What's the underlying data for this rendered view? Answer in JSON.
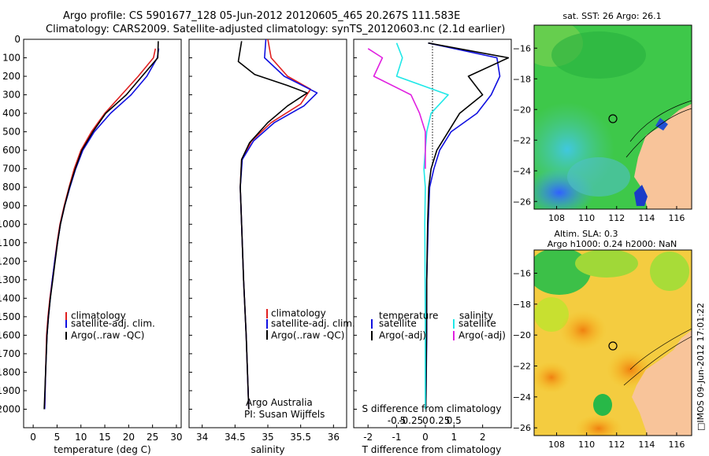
{
  "title_line1": "Argo profile: CS 5901677_128 05-Jun-2012 20120605_465 20.267S 111.583E",
  "title_line2": "Climatology: CARS2009. Satellite-adjusted climatology: synTS_20120603.nc (2.1d earlier)",
  "credit": "Argo Australia",
  "pi": "PI: Susan Wijffels",
  "imos_stamp": "□IMOS 09-Jun-2012 17:01:22",
  "colors": {
    "climatology": "#e02020",
    "satellite": "#1010e0",
    "argo": "#000000",
    "cyan": "#20e0e8",
    "magenta": "#e020e0"
  },
  "chart_data": [
    {
      "type": "line",
      "name": "temperature",
      "xlabel": "temperature (deg C)",
      "ylabel": "",
      "xlim": [
        -2,
        31
      ],
      "ylim": [
        2100,
        0
      ],
      "xticks": [
        0,
        5,
        10,
        15,
        20,
        25,
        30
      ],
      "yticks": [
        0,
        100,
        200,
        300,
        400,
        500,
        600,
        700,
        800,
        900,
        1000,
        1100,
        1200,
        1300,
        1400,
        1500,
        1600,
        1700,
        1800,
        1900,
        2000
      ],
      "legend": [
        "climatology",
        "satellite-adj. clim.",
        "Argo(..raw -QC)"
      ],
      "series": [
        {
          "name": "climatology",
          "color": "#e02020",
          "x": [
            25.6,
            25.2,
            22.0,
            18.5,
            15.0,
            12.2,
            10.0,
            8.6,
            7.5,
            6.5,
            5.6,
            5.0,
            4.5,
            4.0,
            3.5,
            3.1,
            2.8,
            2.6,
            2.4
          ],
          "y": [
            50,
            100,
            200,
            300,
            400,
            500,
            600,
            700,
            800,
            900,
            1000,
            1100,
            1200,
            1300,
            1400,
            1500,
            1600,
            1800,
            2000
          ]
        },
        {
          "name": "satellite-adj. clim.",
          "color": "#1010e0",
          "x": [
            26.3,
            26.0,
            23.8,
            20.5,
            16.2,
            12.8,
            10.4,
            8.9,
            7.7,
            6.6,
            5.7,
            5.1,
            4.5,
            4.0,
            3.6,
            3.2,
            2.9,
            2.6,
            2.4
          ],
          "y": [
            50,
            100,
            200,
            300,
            400,
            500,
            600,
            700,
            800,
            900,
            1000,
            1100,
            1200,
            1300,
            1400,
            1500,
            1600,
            1800,
            2000
          ]
        },
        {
          "name": "Argo(..raw -QC)",
          "color": "#000000",
          "x": [
            26.2,
            26.1,
            22.8,
            19.5,
            15.2,
            12.5,
            10.2,
            8.8,
            7.6,
            6.6,
            5.7,
            5.1,
            4.6,
            4.1,
            3.6,
            3.2,
            2.9,
            2.6,
            2.3
          ],
          "y": [
            10,
            100,
            200,
            300,
            400,
            500,
            600,
            700,
            800,
            900,
            1000,
            1100,
            1200,
            1300,
            1400,
            1500,
            1600,
            1800,
            2000
          ]
        }
      ]
    },
    {
      "type": "line",
      "name": "salinity",
      "xlabel": "salinity",
      "xlim": [
        33.8,
        36.2
      ],
      "ylim": [
        2100,
        0
      ],
      "xticks": [
        34,
        34.5,
        35,
        35.5,
        36
      ],
      "legend": [
        "climatology",
        "satellite-adj. clim.",
        "Argo(..raw -QC)"
      ],
      "series": [
        {
          "name": "climatology",
          "color": "#e02020",
          "x": [
            35.0,
            35.05,
            35.3,
            35.65,
            35.5,
            35.05,
            34.75,
            34.6,
            34.58,
            34.6,
            34.63,
            34.67,
            34.71
          ],
          "y": [
            0,
            100,
            200,
            270,
            350,
            450,
            550,
            650,
            800,
            1000,
            1300,
            1600,
            2000
          ]
        },
        {
          "name": "satellite-adj. clim.",
          "color": "#1010e0",
          "x": [
            34.97,
            34.95,
            35.25,
            35.75,
            35.55,
            35.1,
            34.78,
            34.61,
            34.58,
            34.6,
            34.63,
            34.67,
            34.71
          ],
          "y": [
            0,
            100,
            200,
            290,
            360,
            450,
            550,
            650,
            800,
            1000,
            1300,
            1600,
            2000
          ]
        },
        {
          "name": "Argo(..raw -QC)",
          "color": "#000000",
          "x": [
            34.6,
            34.55,
            34.8,
            35.3,
            35.6,
            35.3,
            35.0,
            34.72,
            34.6,
            34.58,
            34.6,
            34.63,
            34.67,
            34.71
          ],
          "y": [
            10,
            120,
            190,
            250,
            290,
            360,
            450,
            560,
            650,
            800,
            1000,
            1300,
            1600,
            2000
          ]
        }
      ]
    },
    {
      "type": "line",
      "name": "difference from climatology",
      "xlabel": "T difference from climatology",
      "xlabel_top": "S difference from climatology",
      "xlim": [
        -2.5,
        3.0
      ],
      "ylim": [
        2100,
        0
      ],
      "xticks_T": [
        -2,
        -1,
        0,
        1,
        2
      ],
      "xticks_S": [
        "-0.5",
        "-0.25",
        "0",
        "0.25",
        "0.5"
      ],
      "legend_left_title": "temperature",
      "legend_right_title": "salinity",
      "legend_left": [
        "satellite",
        "Argo(-adj)"
      ],
      "legend_right": [
        "satellite",
        "Argo(-adj)"
      ],
      "series": [
        {
          "name": "temperature satellite",
          "color": "#1010e0",
          "x": [
            0.1,
            2.5,
            2.6,
            2.3,
            1.8,
            0.9,
            0.5,
            0.3,
            0.15,
            0.1,
            0.05,
            0.05,
            0.02
          ],
          "y": [
            20,
            100,
            200,
            300,
            400,
            500,
            600,
            700,
            800,
            1000,
            1300,
            1600,
            2000
          ]
        },
        {
          "name": "temperature Argo(-adj)",
          "color": "#000000",
          "x": [
            0.1,
            2.9,
            1.5,
            2.0,
            1.2,
            0.8,
            0.4,
            0.2,
            0.12,
            0.08,
            0.05,
            0.04,
            0.02
          ],
          "y": [
            20,
            100,
            200,
            300,
            400,
            500,
            600,
            700,
            800,
            1000,
            1300,
            1600,
            2000
          ]
        },
        {
          "name": "salinity satellite",
          "color": "#20e8e8",
          "x": [
            -1.0,
            -0.8,
            -1.0,
            0.8,
            0.2,
            0.05,
            0.0,
            -0.05,
            0.0,
            -0.02,
            0.0,
            0.0
          ],
          "y": [
            20,
            100,
            200,
            300,
            400,
            500,
            600,
            700,
            800,
            1000,
            1500,
            2000
          ]
        },
        {
          "name": "salinity Argo(-adj)",
          "color": "#e020e0",
          "x": [
            -2.0,
            -1.5,
            -1.8,
            -0.5,
            -0.2,
            0.0,
            0.0,
            0.0
          ],
          "y": [
            50,
            100,
            200,
            300,
            400,
            500,
            600,
            700
          ]
        }
      ]
    },
    {
      "type": "heatmap",
      "name": "sat. SST",
      "title": "sat. SST: 26 Argo: 26.1",
      "xlim": [
        106.5,
        117
      ],
      "ylim": [
        -26.5,
        -14.5
      ],
      "xticks": [
        108,
        110,
        112,
        114,
        116
      ],
      "yticks": [
        -16,
        -18,
        -20,
        -22,
        -24,
        -26
      ],
      "argo_position": [
        111.583,
        -20.267
      ]
    },
    {
      "type": "heatmap",
      "name": "Altim. SLA",
      "title_line1": "Altim. SLA: 0.3",
      "title_line2": "Argo h1000: 0.24 h2000: NaN",
      "xlim": [
        106.5,
        117
      ],
      "ylim": [
        -26.5,
        -14.5
      ],
      "xticks": [
        108,
        110,
        112,
        114,
        116
      ],
      "yticks": [
        -16,
        -18,
        -20,
        -22,
        -24,
        -26
      ],
      "argo_position": [
        111.583,
        -20.267
      ]
    }
  ]
}
